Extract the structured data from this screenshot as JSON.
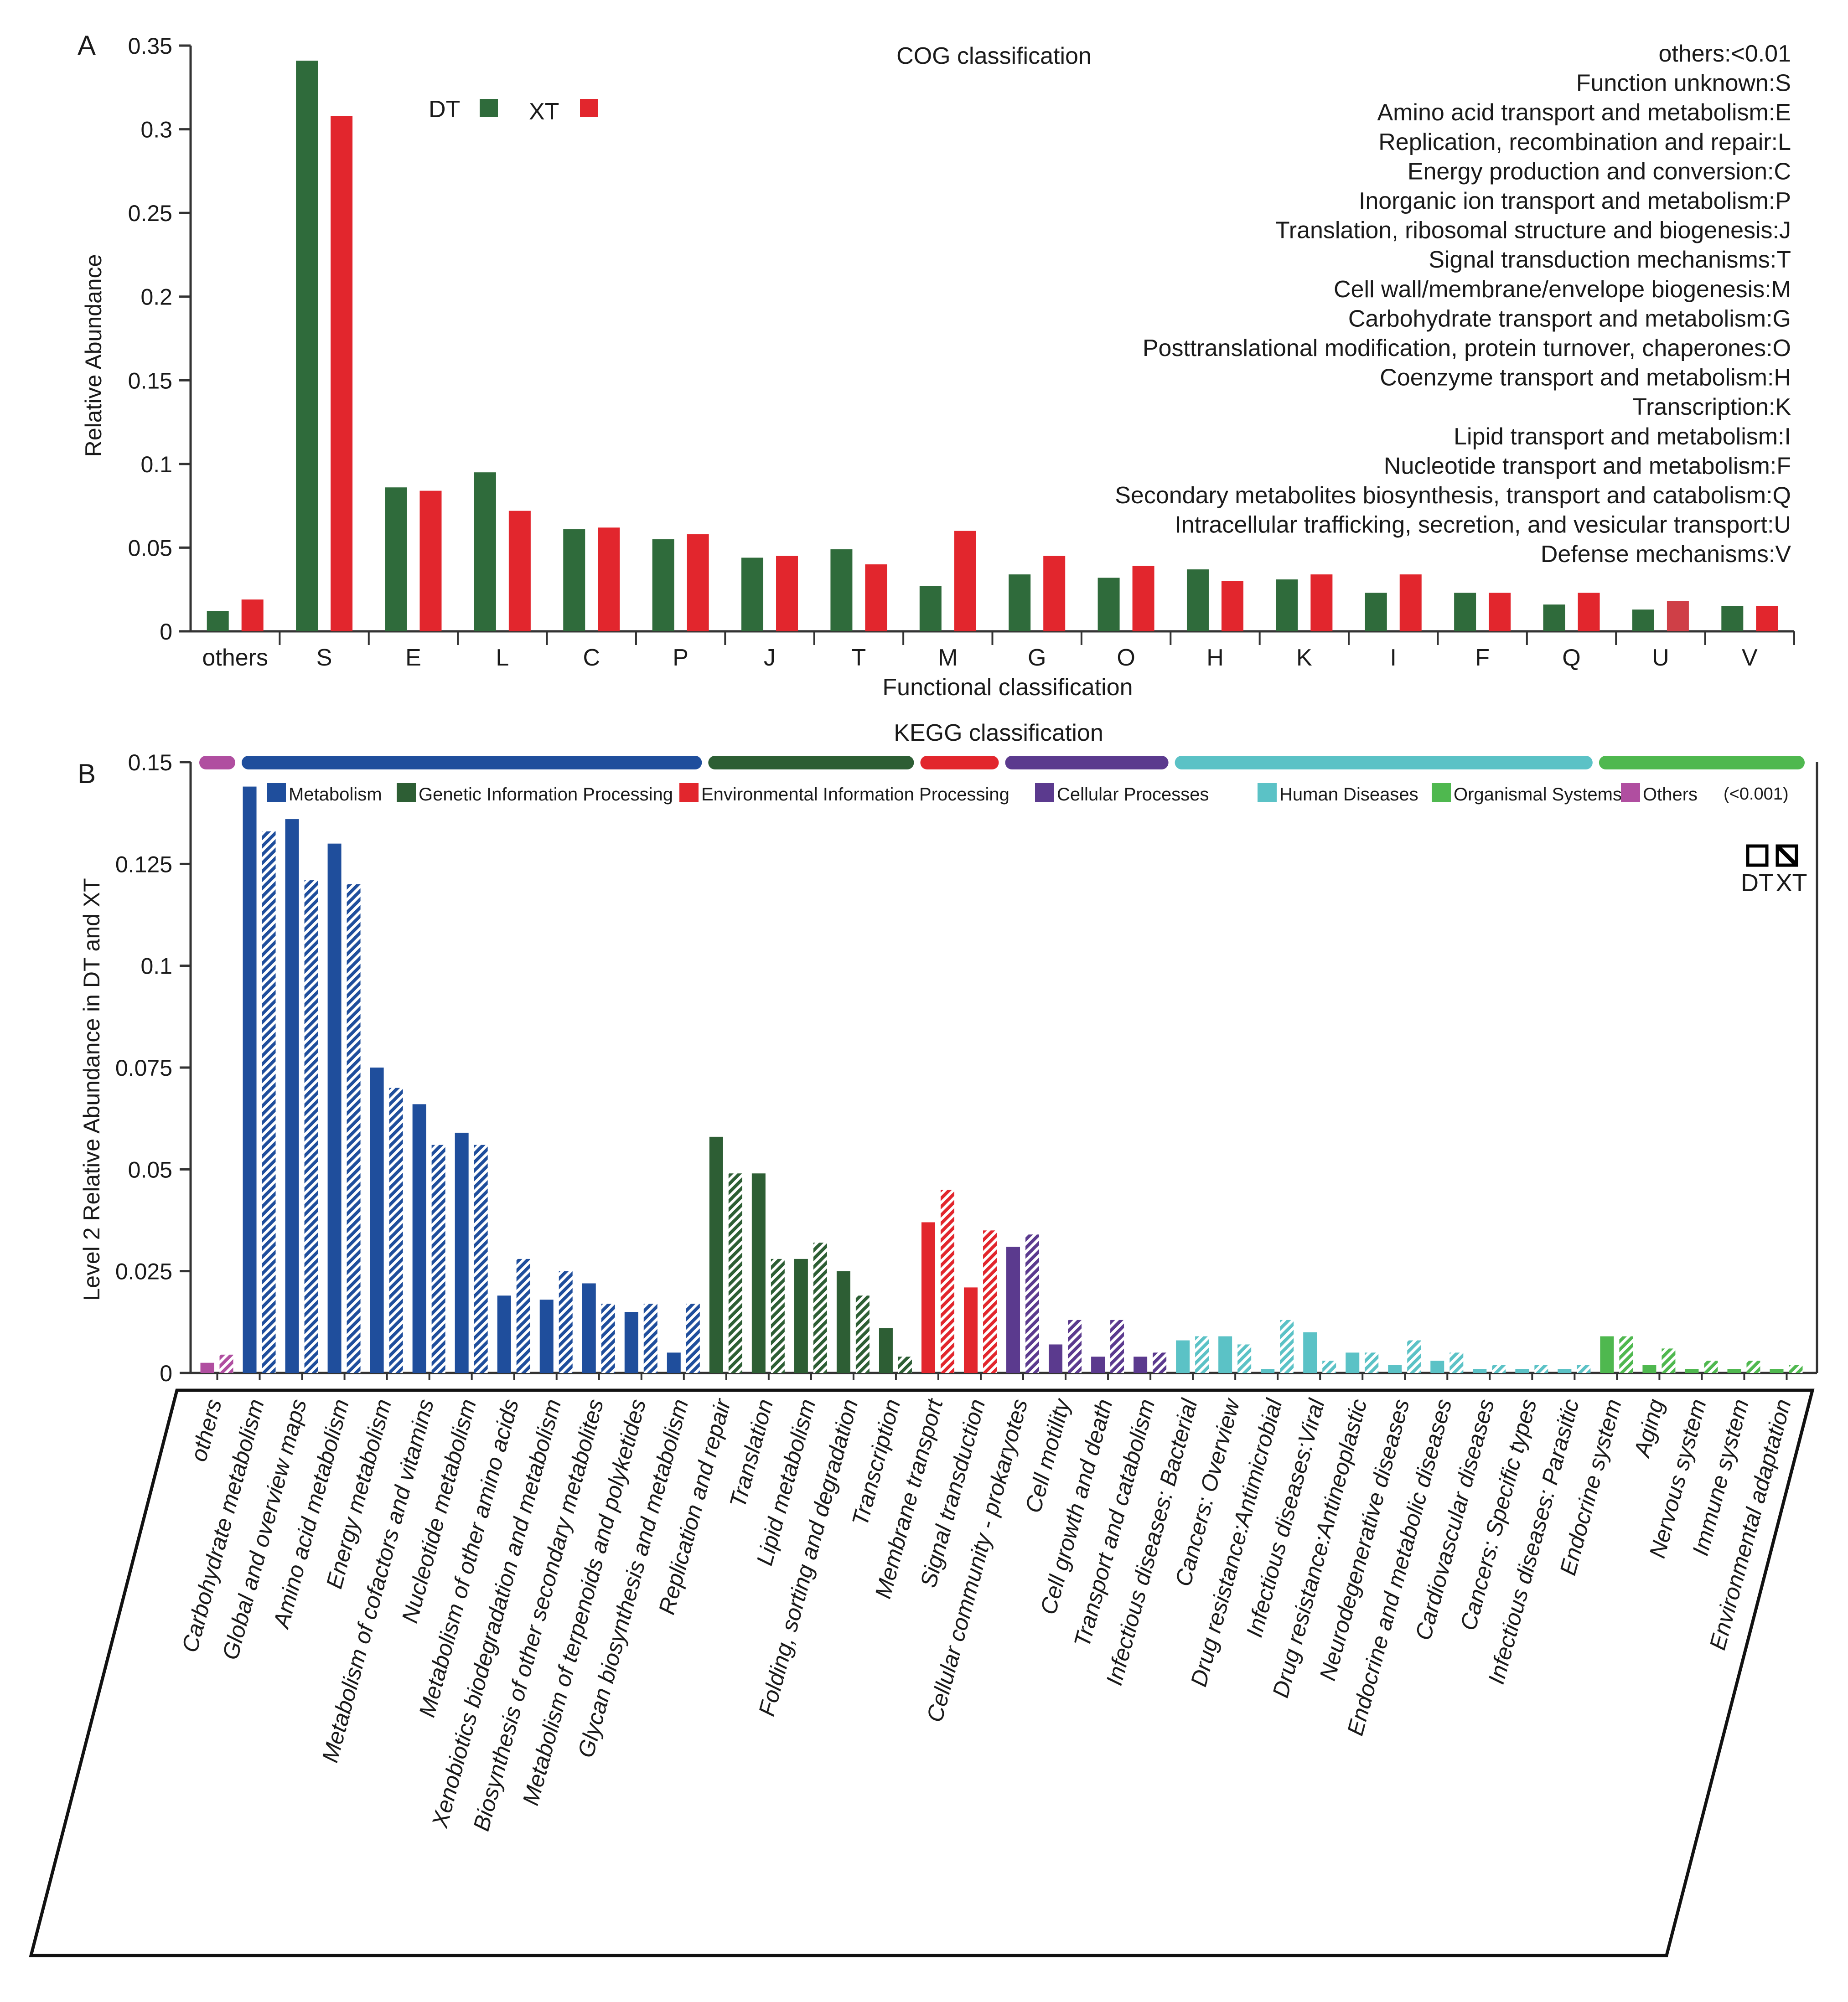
{
  "panels": {
    "a_letter": "A",
    "b_letter": "B"
  },
  "colors": {
    "dt_green": "#2f6b3b",
    "xt_red": "#e2262d",
    "u_xt": "#cf3f47",
    "axis": "#333333",
    "metabolism": "#1f4e9c",
    "genetic": "#2d5e34",
    "environmental": "#e2262d",
    "cellular": "#5b3a8e",
    "human": "#5bc2c6",
    "organismal": "#4fb84f",
    "others": "#b04ea0"
  },
  "chart_data": [
    {
      "type": "bar",
      "title": "COG classification",
      "xlabel": "Functional classification",
      "ylabel": "Relative Abundance",
      "ylim": [
        0,
        0.35
      ],
      "yticks": [
        "0",
        "0.05",
        "0.1",
        "0.15",
        "0.2",
        "0.25",
        "0.3",
        "0.35"
      ],
      "categories": [
        "others",
        "S",
        "E",
        "L",
        "C",
        "P",
        "J",
        "T",
        "M",
        "G",
        "O",
        "H",
        "K",
        "I",
        "F",
        "Q",
        "U",
        "V"
      ],
      "series": [
        {
          "name": "DT",
          "values": [
            0.012,
            0.341,
            0.086,
            0.095,
            0.061,
            0.055,
            0.044,
            0.049,
            0.027,
            0.034,
            0.032,
            0.037,
            0.031,
            0.023,
            0.023,
            0.016,
            0.013,
            0.015
          ]
        },
        {
          "name": "XT",
          "values": [
            0.019,
            0.308,
            0.084,
            0.072,
            0.062,
            0.058,
            0.045,
            0.04,
            0.06,
            0.045,
            0.039,
            0.03,
            0.034,
            0.034,
            0.023,
            0.023,
            0.018,
            0.015
          ]
        }
      ],
      "legend_position": "top-left",
      "annotations": [
        "others:<0.01",
        "Function unknown:S",
        "Amino acid transport and metabolism:E",
        "Replication, recombination and repair:L",
        "Energy production and conversion:C",
        "Inorganic ion transport and metabolism:P",
        "Translation, ribosomal structure and biogenesis:J",
        "Signal transduction mechanisms:T",
        "Cell wall/membrane/envelope biogenesis:M",
        "Carbohydrate transport and metabolism:G",
        "Posttranslational modification, protein turnover, chaperones:O",
        "Coenzyme transport and metabolism:H",
        "Transcription:K",
        "Lipid transport and metabolism:I",
        "Nucleotide transport and metabolism:F",
        "Secondary metabolites biosynthesis, transport and catabolism:Q",
        "Intracellular trafficking, secretion, and vesicular transport:U",
        "Defense mechanisms:V"
      ]
    },
    {
      "type": "bar",
      "title": "KEGG classification",
      "ylabel": "Level 2 Relative Abundance in DT and XT",
      "ylim": [
        0,
        0.15
      ],
      "yticks": [
        "0",
        "0.025",
        "0.05",
        "0.075",
        "0.1",
        "0.125",
        "0.15"
      ],
      "series_names": [
        "DT",
        "XT"
      ],
      "groups": [
        {
          "name": "Others",
          "color_key": "others",
          "count": 1
        },
        {
          "name": "Metabolism",
          "color_key": "metabolism",
          "count": 11
        },
        {
          "name": "Genetic Information Processing",
          "color_key": "genetic",
          "count": 5
        },
        {
          "name": "Environmental Information Processing",
          "color_key": "environmental",
          "count": 2
        },
        {
          "name": "Cellular Processes",
          "color_key": "cellular",
          "count": 4
        },
        {
          "name": "Human Diseases",
          "color_key": "human",
          "count": 10
        },
        {
          "name": "Organismal Systems",
          "color_key": "organismal",
          "count": 5
        }
      ],
      "legend": [
        {
          "label": "Metabolism",
          "color_key": "metabolism"
        },
        {
          "label": "Genetic Information Processing",
          "color_key": "genetic"
        },
        {
          "label": "Environmental Information Processing",
          "color_key": "environmental"
        },
        {
          "label": "Cellular Processes",
          "color_key": "cellular"
        },
        {
          "label": "Human Diseases",
          "color_key": "human"
        },
        {
          "label": "Organismal Systems",
          "color_key": "organismal"
        },
        {
          "label": "Others",
          "color_key": "others"
        }
      ],
      "others_note": "(<0.001)",
      "categories": [
        {
          "label": "others",
          "group": 0,
          "dt": 0.0025,
          "xt": 0.0045
        },
        {
          "label": "Carbohydrate metabolism",
          "group": 1,
          "dt": 0.144,
          "xt": 0.133
        },
        {
          "label": "Global and overview maps",
          "group": 1,
          "dt": 0.136,
          "xt": 0.121
        },
        {
          "label": "Amino acid metabolism",
          "group": 1,
          "dt": 0.13,
          "xt": 0.12
        },
        {
          "label": "Energy metabolism",
          "group": 1,
          "dt": 0.075,
          "xt": 0.07
        },
        {
          "label": "Metabolism of cofactors and vitamins",
          "group": 1,
          "dt": 0.066,
          "xt": 0.056
        },
        {
          "label": "Nucleotide metabolism",
          "group": 1,
          "dt": 0.059,
          "xt": 0.056
        },
        {
          "label": "Metabolism of other amino acids",
          "group": 1,
          "dt": 0.019,
          "xt": 0.028
        },
        {
          "label": "Xenobiotics biodegradation and metabolism",
          "group": 1,
          "dt": 0.018,
          "xt": 0.025
        },
        {
          "label": "Biosynthesis of other secondary metabolites",
          "group": 1,
          "dt": 0.022,
          "xt": 0.017
        },
        {
          "label": "Metabolism of terpenoids and polyketides",
          "group": 1,
          "dt": 0.015,
          "xt": 0.017
        },
        {
          "label": "Glycan biosynthesis and metabolism",
          "group": 1,
          "dt": 0.005,
          "xt": 0.017
        },
        {
          "label": "Replication and repair",
          "group": 2,
          "dt": 0.058,
          "xt": 0.049
        },
        {
          "label": "Translation",
          "group": 2,
          "dt": 0.049,
          "xt": 0.028
        },
        {
          "label": "Lipid metabolism",
          "group": 2,
          "dt": 0.028,
          "xt": 0.032
        },
        {
          "label": "Folding, sorting and degradation",
          "group": 2,
          "dt": 0.025,
          "xt": 0.019
        },
        {
          "label": "Transcription",
          "group": 2,
          "dt": 0.011,
          "xt": 0.004
        },
        {
          "label": "Membrane transport",
          "group": 3,
          "dt": 0.037,
          "xt": 0.045
        },
        {
          "label": "Signal transduction",
          "group": 3,
          "dt": 0.021,
          "xt": 0.035
        },
        {
          "label": "Cellular community - prokaryotes",
          "group": 4,
          "dt": 0.031,
          "xt": 0.034
        },
        {
          "label": "Cell motility",
          "group": 4,
          "dt": 0.007,
          "xt": 0.013
        },
        {
          "label": "Cell growth and death",
          "group": 4,
          "dt": 0.004,
          "xt": 0.013
        },
        {
          "label": "Transport and catabolism",
          "group": 4,
          "dt": 0.004,
          "xt": 0.005
        },
        {
          "label": "Infectious diseases: Bacterial",
          "group": 5,
          "dt": 0.008,
          "xt": 0.009
        },
        {
          "label": "Cancers: Overview",
          "group": 5,
          "dt": 0.009,
          "xt": 0.007
        },
        {
          "label": "Drug resistance:Antimicrobial",
          "group": 5,
          "dt": 0.001,
          "xt": 0.013
        },
        {
          "label": "Infectious diseases:Viral",
          "group": 5,
          "dt": 0.01,
          "xt": 0.003
        },
        {
          "label": "Drug resistance:Antineoplastic",
          "group": 5,
          "dt": 0.005,
          "xt": 0.005
        },
        {
          "label": "Neurodegenerative diseases",
          "group": 5,
          "dt": 0.002,
          "xt": 0.008
        },
        {
          "label": "Endocrine and metabolic diseases",
          "group": 5,
          "dt": 0.003,
          "xt": 0.005
        },
        {
          "label": "Cardiovascular diseases",
          "group": 5,
          "dt": 0.001,
          "xt": 0.002
        },
        {
          "label": "Cancers: Specific types",
          "group": 5,
          "dt": 0.001,
          "xt": 0.002
        },
        {
          "label": "Infectious diseases: Parasitic",
          "group": 5,
          "dt": 0.001,
          "xt": 0.002
        },
        {
          "label": "Endocrine system",
          "group": 6,
          "dt": 0.009,
          "xt": 0.009
        },
        {
          "label": "Aging",
          "group": 6,
          "dt": 0.002,
          "xt": 0.006
        },
        {
          "label": "Nervous system",
          "group": 6,
          "dt": 0.001,
          "xt": 0.003
        },
        {
          "label": "Immune system",
          "group": 6,
          "dt": 0.001,
          "xt": 0.003
        },
        {
          "label": "Environmental adaptation",
          "group": 6,
          "dt": 0.001,
          "xt": 0.002
        }
      ]
    }
  ]
}
